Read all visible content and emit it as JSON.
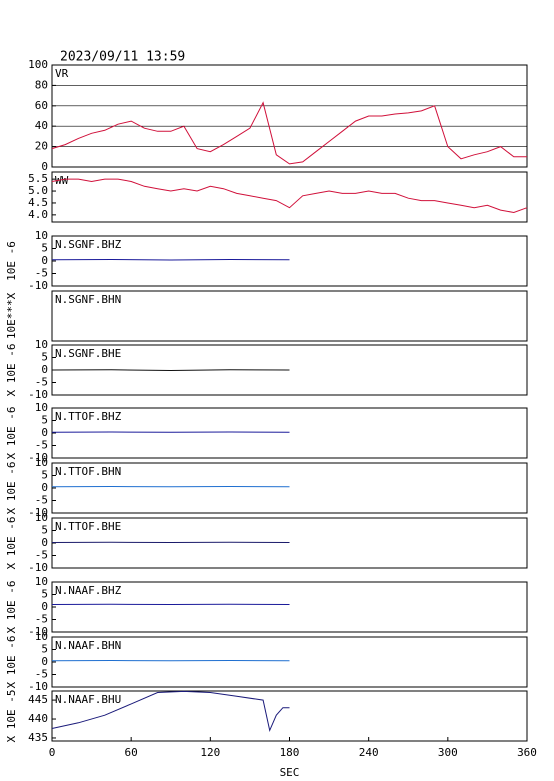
{
  "chart_data": [
    {
      "type": "line",
      "title": "2023/09/11 13:59",
      "xlim": [
        0,
        360
      ],
      "ylim": [
        0,
        100
      ],
      "yticks": [
        0,
        20,
        40,
        60,
        80,
        100
      ],
      "grid": true,
      "series": [
        {
          "name": "VR",
          "color": "#d0103a",
          "x": [
            0,
            10,
            20,
            30,
            40,
            50,
            60,
            70,
            80,
            90,
            100,
            110,
            120,
            130,
            140,
            150,
            160,
            170,
            180,
            190,
            200,
            210,
            220,
            230,
            240,
            250,
            260,
            270,
            280,
            290,
            300,
            310,
            320,
            330,
            340,
            350,
            360
          ],
          "values": [
            18,
            22,
            28,
            33,
            36,
            42,
            45,
            38,
            35,
            35,
            40,
            18,
            15,
            22,
            30,
            38,
            63,
            12,
            3,
            5,
            15,
            25,
            35,
            45,
            50,
            50,
            52,
            53,
            55,
            60,
            20,
            8,
            12,
            15,
            20,
            10,
            10
          ]
        }
      ]
    },
    {
      "type": "line",
      "xlim": [
        0,
        360
      ],
      "ylim": [
        3.7,
        5.8
      ],
      "yticks": [
        {
          "value": 4,
          "label": "4.0"
        },
        4.5,
        {
          "value": 5,
          "label": "5.0"
        },
        5.5
      ],
      "series": [
        {
          "name": "WW",
          "color": "#d0103a",
          "x": [
            0,
            10,
            20,
            30,
            40,
            50,
            60,
            70,
            80,
            90,
            100,
            110,
            120,
            130,
            140,
            150,
            160,
            170,
            180,
            190,
            200,
            210,
            220,
            230,
            240,
            250,
            260,
            270,
            280,
            290,
            300,
            310,
            320,
            330,
            340,
            350,
            360
          ],
          "values": [
            5.4,
            5.5,
            5.5,
            5.4,
            5.5,
            5.5,
            5.4,
            5.2,
            5.1,
            5.0,
            5.1,
            5.0,
            5.2,
            5.1,
            4.9,
            4.8,
            4.7,
            4.6,
            4.3,
            4.8,
            4.9,
            5.0,
            4.9,
            4.9,
            5.0,
            4.9,
            4.9,
            4.7,
            4.6,
            4.6,
            4.5,
            4.4,
            4.3,
            4.4,
            4.2,
            4.1,
            4.3
          ]
        }
      ]
    },
    {
      "type": "line",
      "xlim": [
        0,
        360
      ],
      "ylim": [
        -10,
        10
      ],
      "yticks": [
        -10,
        -5,
        0,
        5,
        10
      ],
      "ylabel": "10E -6",
      "series": [
        {
          "name": "N.SGNF.BHZ",
          "color": "#1a1a9a",
          "x": [
            0,
            45,
            90,
            135,
            180
          ],
          "values": [
            0.5,
            0.6,
            0.4,
            0.6,
            0.5
          ]
        }
      ]
    },
    {
      "type": "line",
      "xlim": [
        0,
        360
      ],
      "ylim": [
        -10,
        10
      ],
      "ylabel": "10E***X",
      "series": [
        {
          "name": "N.SGNF.BHN",
          "x": [],
          "values": []
        }
      ]
    },
    {
      "type": "line",
      "xlim": [
        0,
        360
      ],
      "ylim": [
        -10,
        10
      ],
      "yticks": [
        -10,
        -5,
        0,
        5,
        10
      ],
      "ylabel": "X 10E -6",
      "series": [
        {
          "name": "N.SGNF.BHE",
          "color": "#111111",
          "x": [
            0,
            45,
            90,
            135,
            180
          ],
          "values": [
            0,
            0.1,
            -0.2,
            0.1,
            0
          ]
        }
      ]
    },
    {
      "type": "line",
      "xlim": [
        0,
        360
      ],
      "ylim": [
        -10,
        10
      ],
      "yticks": [
        -10,
        -5,
        0,
        5,
        10
      ],
      "ylabel": "X 10E -6",
      "series": [
        {
          "name": "N.TTOF.BHZ",
          "color": "#1a1a9a",
          "x": [
            0,
            45,
            90,
            135,
            180
          ],
          "values": [
            0.3,
            0.4,
            0.3,
            0.4,
            0.3
          ]
        }
      ]
    },
    {
      "type": "line",
      "xlim": [
        0,
        360
      ],
      "ylim": [
        -10,
        10
      ],
      "yticks": [
        -10,
        -5,
        0,
        5,
        10
      ],
      "ylabel": "X 10E -6",
      "series": [
        {
          "name": "N.TTOF.BHN",
          "color": "#1f6fd0",
          "x": [
            0,
            45,
            90,
            135,
            180
          ],
          "values": [
            0.5,
            0.6,
            0.5,
            0.6,
            0.5
          ]
        }
      ]
    },
    {
      "type": "line",
      "xlim": [
        0,
        360
      ],
      "ylim": [
        -10,
        10
      ],
      "yticks": [
        -10,
        -5,
        0,
        5,
        10
      ],
      "ylabel": "X 10E -6",
      "series": [
        {
          "name": "N.TTOF.BHE",
          "color": "#1a1a6a",
          "x": [
            0,
            45,
            90,
            135,
            180
          ],
          "values": [
            0.2,
            0.3,
            0.2,
            0.3,
            0.2
          ]
        }
      ]
    },
    {
      "type": "line",
      "xlim": [
        0,
        360
      ],
      "ylim": [
        -10,
        10
      ],
      "yticks": [
        -10,
        -5,
        0,
        5,
        10
      ],
      "ylabel": "X 10E -6",
      "series": [
        {
          "name": "N.NAAF.BHZ",
          "color": "#1a1a9a",
          "x": [
            0,
            45,
            90,
            135,
            180
          ],
          "values": [
            1,
            1.1,
            1,
            1.1,
            1
          ]
        }
      ]
    },
    {
      "type": "line",
      "xlim": [
        0,
        360
      ],
      "ylim": [
        -10,
        10
      ],
      "yticks": [
        -10,
        -5,
        0,
        5,
        10
      ],
      "ylabel": "X 10E -6",
      "series": [
        {
          "name": "N.NAAF.BHN",
          "color": "#1f6fd0",
          "x": [
            0,
            45,
            90,
            135,
            180
          ],
          "values": [
            0.5,
            0.6,
            0.5,
            0.6,
            0.5
          ]
        }
      ]
    },
    {
      "type": "line",
      "xlim": [
        0,
        360
      ],
      "ylim": [
        434.2,
        447.4
      ],
      "yticks": [
        435,
        440,
        445
      ],
      "ylabel": "X 10E -5",
      "xlabel": "SEC",
      "xticks": [
        0,
        60,
        120,
        180,
        240,
        300,
        360
      ],
      "series": [
        {
          "name": "N.NAAF.BHU",
          "color": "#1a1a7a",
          "x": [
            0,
            20,
            40,
            60,
            80,
            100,
            120,
            140,
            160,
            165,
            170,
            175,
            180
          ],
          "values": [
            437.5,
            439,
            441,
            444,
            447,
            447.3,
            447,
            446,
            445,
            437,
            441,
            443,
            443
          ]
        }
      ]
    }
  ]
}
